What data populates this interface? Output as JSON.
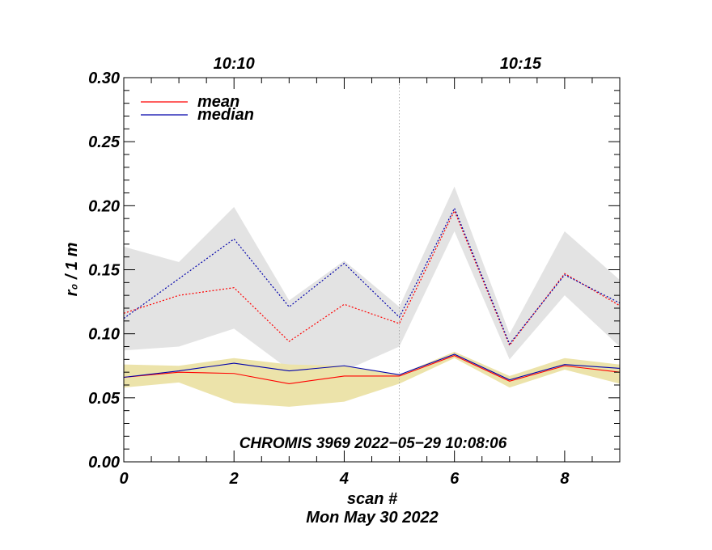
{
  "chart_data": {
    "type": "line",
    "title": "",
    "xlabel": "scan #",
    "ylabel": "r₀ / 1 m",
    "subtitle_bottom": "Mon May 30 2022",
    "annotation": "CHROMIS 3969 2022−05−29 10:08:06",
    "xlim": [
      0,
      9
    ],
    "ylim": [
      0,
      0.3
    ],
    "x_ticks": [
      0,
      2,
      4,
      6,
      8
    ],
    "x_tick_labels": [
      "0",
      "2",
      "4",
      "6",
      "8"
    ],
    "y_ticks": [
      0.0,
      0.05,
      0.1,
      0.15,
      0.2,
      0.25,
      0.3
    ],
    "y_tick_labels": [
      "0.00",
      "0.05",
      "0.10",
      "0.15",
      "0.20",
      "0.25",
      "0.30"
    ],
    "top_axis": [
      {
        "x": 2,
        "label": "10:10"
      },
      {
        "x": 7.2,
        "label": "10:15"
      }
    ],
    "marker_line_x": 5,
    "legend": [
      {
        "name": "mean",
        "color": "#ff0000"
      },
      {
        "name": "median",
        "color": "#0000aa"
      }
    ],
    "x": [
      0,
      1,
      2,
      3,
      4,
      5,
      6,
      7,
      8,
      9
    ],
    "upper_band": {
      "color": "#e3e3e3",
      "low": [
        0.087,
        0.09,
        0.104,
        0.072,
        0.071,
        0.09,
        0.18,
        0.08,
        0.13,
        0.09
      ],
      "high": [
        0.168,
        0.156,
        0.199,
        0.126,
        0.157,
        0.121,
        0.215,
        0.1,
        0.18,
        0.142
      ]
    },
    "lower_band": {
      "color": "#ece3aa",
      "low": [
        0.058,
        0.062,
        0.046,
        0.043,
        0.047,
        0.061,
        0.081,
        0.058,
        0.072,
        0.061
      ],
      "high": [
        0.076,
        0.075,
        0.081,
        0.076,
        0.075,
        0.068,
        0.086,
        0.067,
        0.081,
        0.076
      ]
    },
    "series": [
      {
        "name": "mean",
        "role": "upper",
        "color": "#ff0000",
        "dash": true,
        "values": [
          0.116,
          0.13,
          0.136,
          0.094,
          0.123,
          0.108,
          0.196,
          0.091,
          0.147,
          0.122
        ]
      },
      {
        "name": "median",
        "role": "upper",
        "color": "#0000aa",
        "dash": true,
        "values": [
          0.112,
          0.143,
          0.174,
          0.121,
          0.155,
          0.113,
          0.198,
          0.092,
          0.146,
          0.124
        ]
      },
      {
        "name": "mean",
        "role": "lower",
        "color": "#ff0000",
        "dash": false,
        "values": [
          0.066,
          0.07,
          0.069,
          0.061,
          0.067,
          0.067,
          0.083,
          0.063,
          0.075,
          0.07
        ]
      },
      {
        "name": "median",
        "role": "lower",
        "color": "#0000aa",
        "dash": false,
        "values": [
          0.066,
          0.071,
          0.077,
          0.071,
          0.075,
          0.068,
          0.084,
          0.064,
          0.076,
          0.073
        ]
      }
    ]
  }
}
